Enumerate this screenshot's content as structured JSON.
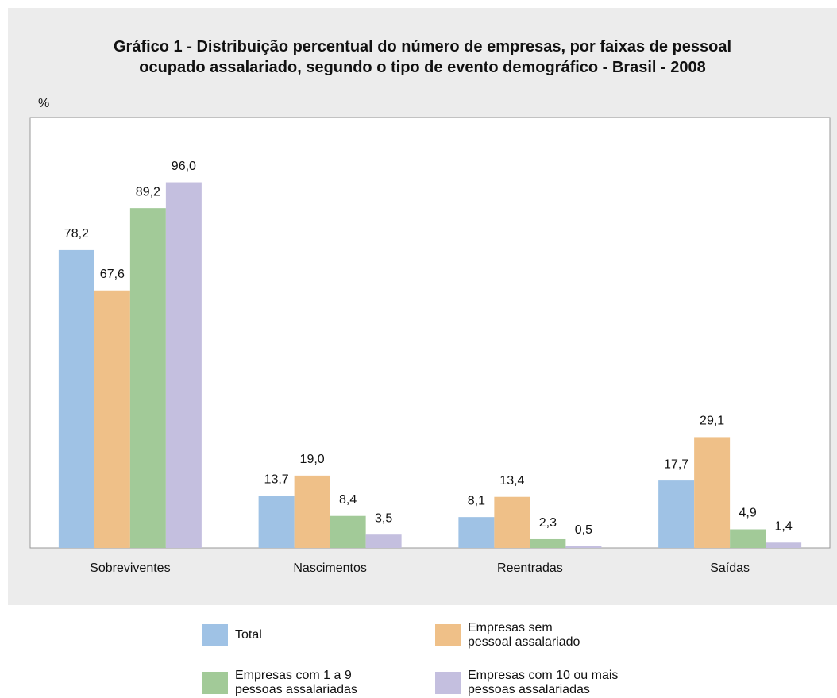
{
  "chart_data": {
    "type": "bar",
    "title": "Gráfico 1 - Distribuição percentual do número de empresas, por faixas de pessoal\nocupado assalariado, segundo o tipo de evento demográfico - Brasil - 2008",
    "y_label": "%",
    "categories": [
      "Sobreviventes",
      "Nascimentos",
      "Reentradas",
      "Saídas"
    ],
    "ylim": [
      0,
      113
    ],
    "series": [
      {
        "name": "Total",
        "color": "#9fc2e5",
        "values": [
          78.2,
          13.7,
          8.1,
          17.7
        ],
        "value_labels": [
          "78,2",
          "13,7",
          "8,1",
          "17,7"
        ]
      },
      {
        "name": "Empresas sem\npessoal assalariado",
        "color": "#efc088",
        "values": [
          67.6,
          19.0,
          13.4,
          29.1
        ],
        "value_labels": [
          "67,6",
          "19,0",
          "13,4",
          "29,1"
        ]
      },
      {
        "name": "Empresas com 1 a 9\npessoas assalariadas",
        "color": "#a2ca98",
        "values": [
          89.2,
          8.4,
          2.3,
          4.9
        ],
        "value_labels": [
          "89,2",
          "8,4",
          "2,3",
          "4,9"
        ]
      },
      {
        "name": "Empresas com 10 ou mais\npessoas assalariadas",
        "color": "#c4bfdf",
        "values": [
          96.0,
          3.5,
          0.5,
          1.4
        ],
        "value_labels": [
          "96,0",
          "3,5",
          "0,5",
          "1,4"
        ]
      }
    ]
  }
}
